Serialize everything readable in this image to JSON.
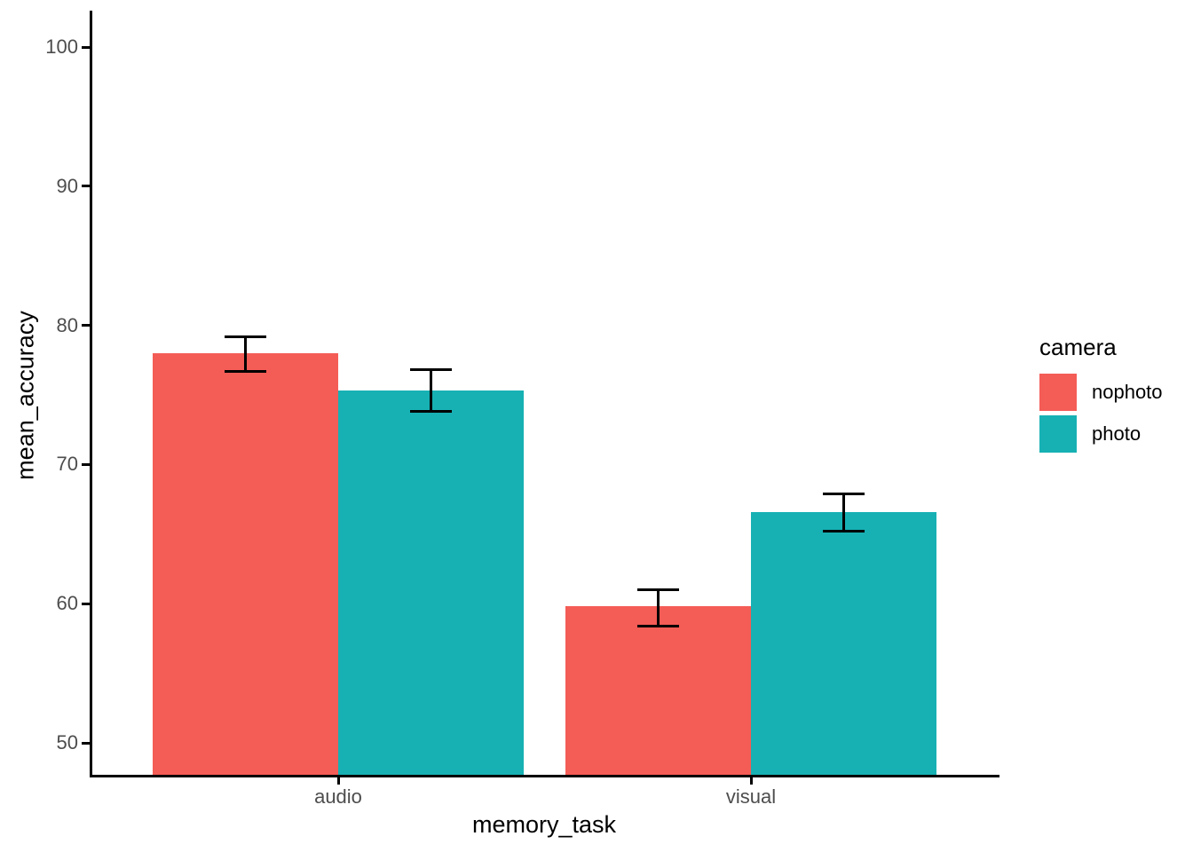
{
  "chart_data": {
    "type": "bar",
    "title": "",
    "xlabel": "memory_task",
    "ylabel": "mean_accuracy",
    "categories": [
      "audio",
      "visual"
    ],
    "series": [
      {
        "name": "nophoto",
        "color": "#F45C56",
        "values": [
          78.0,
          59.8
        ],
        "error_low": [
          76.7,
          58.4
        ],
        "error_high": [
          79.2,
          61.0
        ]
      },
      {
        "name": "photo",
        "color": "#17B1B4",
        "values": [
          75.3,
          66.6
        ],
        "error_low": [
          73.8,
          65.2
        ],
        "error_high": [
          76.8,
          67.9
        ]
      }
    ],
    "y_ticks": [
      50,
      60,
      70,
      80,
      90,
      100
    ],
    "ylim": [
      47.6,
      102.6
    ],
    "grid": false,
    "legend": {
      "title": "camera",
      "position": "right"
    },
    "style": {
      "error_bar_color": "#000000",
      "axis_color": "#000000",
      "tick_label_color": "#4d4d4d"
    }
  }
}
